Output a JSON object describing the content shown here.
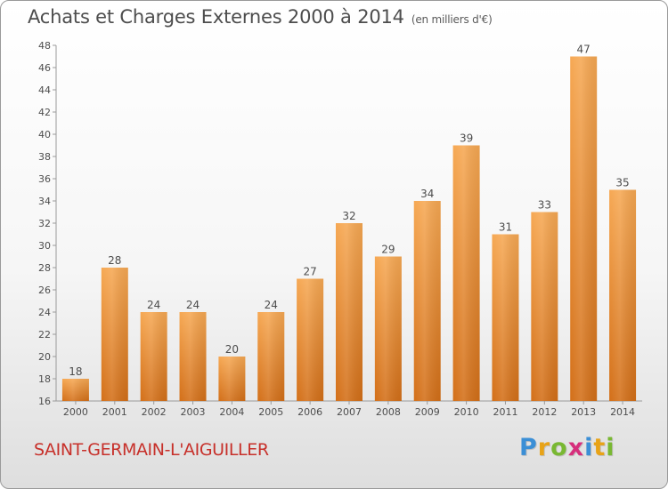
{
  "title": "Achats et Charges Externes 2000 à 2014",
  "unit": "(en milliers d'€)",
  "commune": "SAINT-GERMAIN-L'AIGUILLER",
  "logo": {
    "letters": [
      "P",
      "r",
      "o",
      "x",
      "i",
      "t",
      "i"
    ],
    "colors": [
      "#3b8fd6",
      "#e8a317",
      "#79b832",
      "#d62f7c",
      "#3b8fd6",
      "#e8a317",
      "#79b832"
    ]
  },
  "chart_data": {
    "type": "bar",
    "categories": [
      "2000",
      "2001",
      "2002",
      "2003",
      "2004",
      "2005",
      "2006",
      "2007",
      "2008",
      "2009",
      "2010",
      "2011",
      "2012",
      "2013",
      "2014"
    ],
    "values": [
      18,
      28,
      24,
      24,
      20,
      24,
      27,
      32,
      29,
      34,
      39,
      31,
      33,
      47,
      35
    ],
    "ylim": [
      16,
      48
    ],
    "yticks": [
      16,
      18,
      20,
      22,
      24,
      26,
      28,
      30,
      32,
      34,
      36,
      38,
      40,
      42,
      44,
      46,
      48
    ],
    "title": "Achats et Charges Externes 2000 à 2014",
    "ylabel": "",
    "xlabel": "",
    "grid": false,
    "bar_color_top": "#f6a853",
    "bar_color_bottom": "#d36f18"
  }
}
